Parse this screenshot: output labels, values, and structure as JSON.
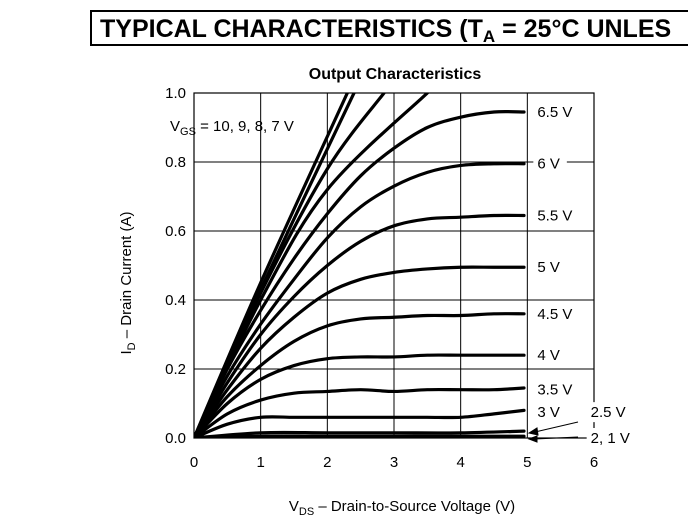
{
  "header": {
    "prefix": "TYPICAL CHARACTERISTICS (T",
    "sub": "A",
    "suffix": " = 25°C UNLES"
  },
  "chart_data": {
    "type": "line",
    "title": "Output Characteristics",
    "xlabel_main": "V",
    "xlabel_sub": "DS",
    "xlabel_rest": " – Drain-to-Source Voltage (V)",
    "ylabel_main": "I",
    "ylabel_sub": "D",
    "ylabel_rest": " – Drain Current (A)",
    "xlim": [
      0,
      6
    ],
    "ylim": [
      0,
      1.0
    ],
    "xticks": [
      "0",
      "1",
      "2",
      "3",
      "4",
      "5",
      "6"
    ],
    "yticks": [
      "0.0",
      "0.2",
      "0.4",
      "0.6",
      "0.8",
      "1.0"
    ],
    "grid": true,
    "annotation_main": "V",
    "annotation_sub": "GS",
    "annotation_rest": " = 10, 9, 8, 7 V",
    "series": [
      {
        "name": "10 V",
        "x": [
          0,
          1,
          2.3
        ],
        "y": [
          0,
          0.45,
          1.0
        ]
      },
      {
        "name": "9 V",
        "x": [
          0,
          1,
          2.4
        ],
        "y": [
          0,
          0.43,
          1.0
        ]
      },
      {
        "name": "8 V",
        "x": [
          0,
          1,
          2,
          2.85
        ],
        "y": [
          0,
          0.42,
          0.78,
          1.0
        ]
      },
      {
        "name": "7 V",
        "x": [
          0,
          1,
          2,
          3.5
        ],
        "y": [
          0,
          0.4,
          0.72,
          1.0
        ]
      },
      {
        "name": "6.5 V",
        "x": [
          0,
          0.5,
          1,
          1.5,
          2,
          2.5,
          3,
          3.5,
          4,
          4.5,
          4.95
        ],
        "y": [
          0,
          0.2,
          0.37,
          0.52,
          0.65,
          0.76,
          0.84,
          0.9,
          0.93,
          0.945,
          0.945
        ]
      },
      {
        "name": "6 V",
        "x": [
          0,
          0.5,
          1,
          1.5,
          2,
          2.5,
          3,
          3.5,
          4,
          4.5,
          4.95
        ],
        "y": [
          0,
          0.18,
          0.33,
          0.46,
          0.58,
          0.67,
          0.73,
          0.77,
          0.79,
          0.795,
          0.795
        ]
      },
      {
        "name": "5.5 V",
        "x": [
          0,
          0.5,
          1,
          1.5,
          2,
          2.5,
          3,
          3.5,
          4,
          4.5,
          4.95
        ],
        "y": [
          0,
          0.16,
          0.3,
          0.41,
          0.5,
          0.57,
          0.615,
          0.635,
          0.64,
          0.645,
          0.645
        ]
      },
      {
        "name": "5 V",
        "x": [
          0,
          0.5,
          1,
          1.5,
          2,
          2.5,
          3,
          3.5,
          4,
          4.5,
          4.95
        ],
        "y": [
          0,
          0.14,
          0.26,
          0.35,
          0.42,
          0.46,
          0.48,
          0.49,
          0.495,
          0.495,
          0.495
        ]
      },
      {
        "name": "4.5 V",
        "x": [
          0,
          0.5,
          1,
          1.5,
          2,
          2.5,
          3,
          3.5,
          4,
          4.5,
          4.95
        ],
        "y": [
          0,
          0.12,
          0.21,
          0.28,
          0.325,
          0.345,
          0.35,
          0.355,
          0.355,
          0.36,
          0.36
        ]
      },
      {
        "name": "4 V",
        "x": [
          0,
          0.5,
          1,
          1.5,
          2,
          2.5,
          3,
          3.5,
          4,
          4.5,
          4.95
        ],
        "y": [
          0,
          0.1,
          0.17,
          0.21,
          0.23,
          0.235,
          0.235,
          0.24,
          0.24,
          0.24,
          0.24
        ]
      },
      {
        "name": "3.5 V",
        "x": [
          0,
          0.5,
          1,
          1.5,
          2,
          2.5,
          3,
          3.5,
          4,
          4.5,
          4.95
        ],
        "y": [
          0,
          0.07,
          0.11,
          0.13,
          0.135,
          0.14,
          0.135,
          0.14,
          0.14,
          0.14,
          0.145
        ]
      },
      {
        "name": "3 V",
        "x": [
          0,
          0.5,
          1,
          1.5,
          2,
          2.5,
          3,
          3.5,
          4,
          4.5,
          4.95
        ],
        "y": [
          0,
          0.04,
          0.06,
          0.06,
          0.06,
          0.06,
          0.06,
          0.06,
          0.06,
          0.07,
          0.08
        ]
      },
      {
        "name": "2.5 V",
        "x": [
          0,
          1,
          2,
          3,
          4,
          4.95
        ],
        "y": [
          0,
          0.015,
          0.015,
          0.015,
          0.015,
          0.02
        ]
      },
      {
        "name": "2 V",
        "x": [
          0,
          1,
          2,
          3,
          4,
          4.95
        ],
        "y": [
          0,
          0.005,
          0.005,
          0.005,
          0.005,
          0.005
        ]
      }
    ],
    "curve_labels": [
      {
        "text": "6.5 V",
        "x": 5.15,
        "y": 0.945
      },
      {
        "text": "6 V",
        "x": 5.15,
        "y": 0.795
      },
      {
        "text": "5.5 V",
        "x": 5.15,
        "y": 0.645
      },
      {
        "text": "5 V",
        "x": 5.15,
        "y": 0.495
      },
      {
        "text": "4.5 V",
        "x": 5.15,
        "y": 0.36
      },
      {
        "text": "4 V",
        "x": 5.15,
        "y": 0.24
      },
      {
        "text": "3.5 V",
        "x": 5.15,
        "y": 0.14
      },
      {
        "text": "3 V",
        "x": 5.15,
        "y": 0.075
      },
      {
        "text": "2.5 V",
        "x": 5.95,
        "y": 0.075
      },
      {
        "text": "2, 1 V",
        "x": 5.95,
        "y": 0.0
      }
    ]
  }
}
